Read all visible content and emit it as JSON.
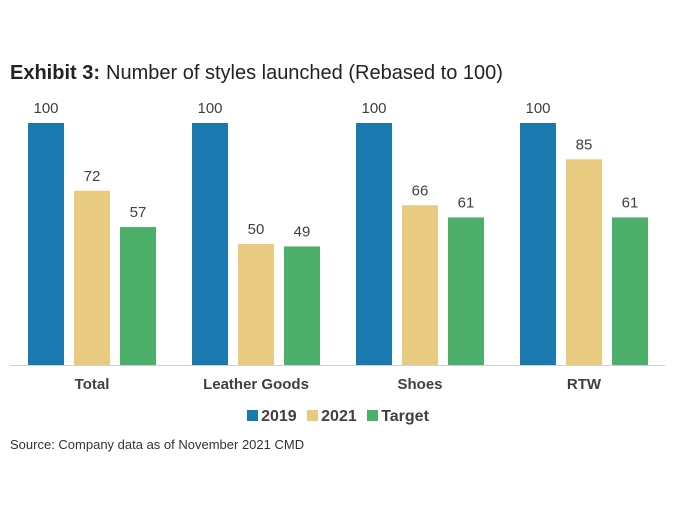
{
  "chart_data": {
    "type": "bar",
    "title_prefix": "Exhibit 3:",
    "title": "Number of styles launched (Rebased to 100)",
    "categories": [
      "Total",
      "Leather Goods",
      "Shoes",
      "RTW"
    ],
    "series": [
      {
        "name": "2019",
        "color": "#1a7ab0",
        "values": [
          100,
          100,
          100,
          100
        ]
      },
      {
        "name": "2021",
        "color": "#e8ca80",
        "values": [
          72,
          50,
          66,
          85
        ]
      },
      {
        "name": "Target",
        "color": "#4caf6a",
        "values": [
          57,
          49,
          61,
          61
        ]
      }
    ],
    "ylim": [
      0,
      100
    ],
    "grid": false,
    "legend_position": "bottom",
    "source": "Source: Company data as of November 2021 CMD"
  }
}
